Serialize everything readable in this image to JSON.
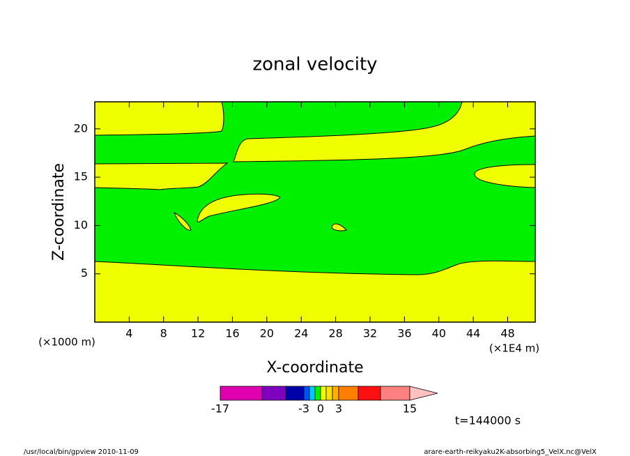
{
  "chart_data": {
    "type": "contour",
    "title": "zonal velocity",
    "x_label": "X-coordinate",
    "y_label": "Z-coordinate",
    "x_unit_label": "(×1000 m)",
    "x_scale_label": "(×1E4 m)",
    "xlim": [
      0,
      51.2
    ],
    "xticks": [
      4,
      8,
      12,
      16,
      20,
      24,
      28,
      32,
      36,
      40,
      44,
      48
    ],
    "ylim": [
      0,
      22.8
    ],
    "yticks": [
      5,
      10,
      15,
      20
    ],
    "colorbar": {
      "levels": [
        -17,
        null,
        null,
        -3,
        null,
        null,
        0,
        null,
        null,
        3,
        null,
        null,
        15
      ],
      "colors": [
        "#e000b0",
        "#8000c0",
        "#0000a8",
        "#0050ff",
        "#00c8ff",
        "#00f000",
        "#f0ff00",
        "#ffe000",
        "#ffb000",
        "#ff8000",
        "#ff1010",
        "#ff8080"
      ],
      "extend_color": "#ffc0c0"
    },
    "time_label": "t=144000 s",
    "footer_left": "/usr/local/bin/gpview   2010-11-09",
    "footer_right": "arare-earth-reikyaku2K-absorbing5_VelX.nc@VelX"
  }
}
